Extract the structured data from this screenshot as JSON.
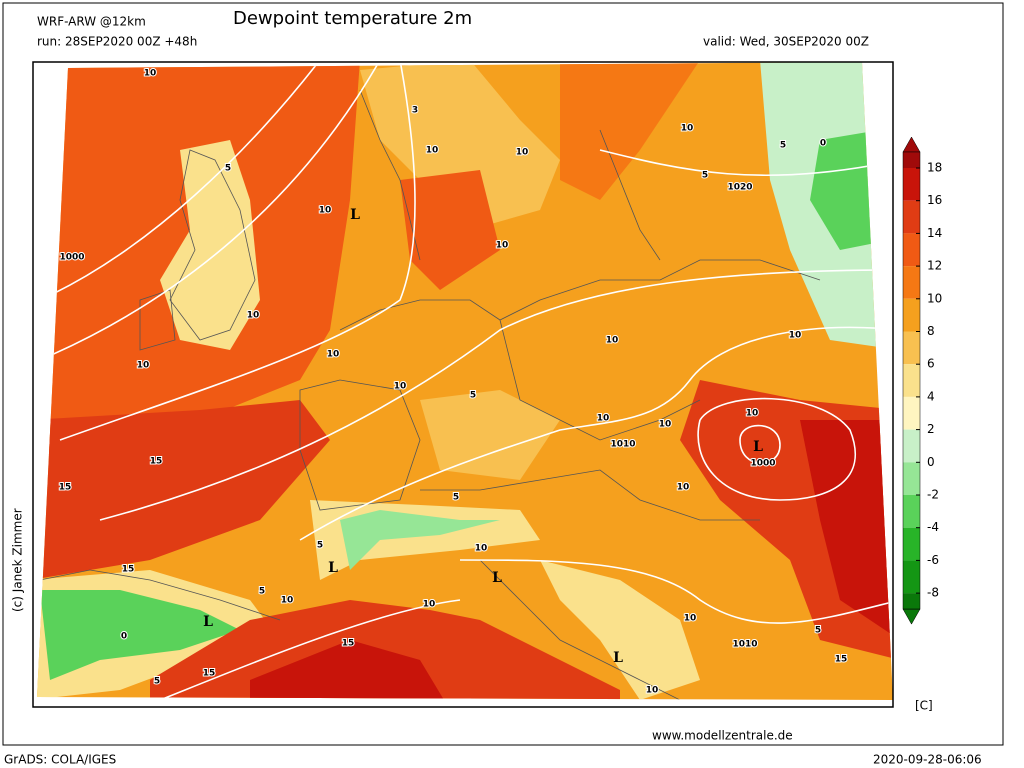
{
  "header": {
    "model": "WRF-ARW @12km",
    "title": "Dewpoint temperature 2m",
    "run": "run: 28SEP2020 00Z +48h",
    "valid": "valid: Wed, 30SEP2020 00Z"
  },
  "legend": {
    "ticks": [
      18,
      16,
      14,
      12,
      10,
      8,
      6,
      4,
      2,
      0,
      -2,
      -4,
      -6,
      -8
    ],
    "unit": "[C]",
    "colors": [
      "#a00a0a",
      "#c8140a",
      "#e03c14",
      "#f05a14",
      "#f57814",
      "#f5a01e",
      "#f8c050",
      "#fae18c",
      "#fff5c0",
      "#c8f0c8",
      "#96e696",
      "#5ad25a",
      "#28b428",
      "#149614",
      "#0a780a"
    ]
  },
  "map_labels": [
    "10",
    "10",
    "L",
    "1000",
    "5",
    "10",
    "10",
    "10",
    "10",
    "10",
    "10",
    "10",
    "3",
    "10",
    "5",
    "0",
    "1020",
    "5",
    "10",
    "10",
    "5",
    "10",
    "1010",
    "10",
    "10",
    "L",
    "1000",
    "15",
    "15",
    "10",
    "5",
    "5",
    "10",
    "L",
    "L",
    "15",
    "10",
    "5",
    "L",
    "0",
    "10",
    "15",
    "10",
    "1010",
    "L",
    "15",
    "5",
    "10",
    "15",
    "5"
  ],
  "footer": {
    "credit": "(c) Janek Zimmer",
    "website": "www.modellzentrale.de",
    "software": "GrADS: COLA/IGES",
    "timestamp": "2020-09-28-06:06"
  }
}
